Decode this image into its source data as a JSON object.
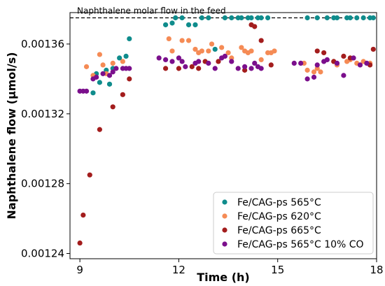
{
  "chart_data": {
    "type": "scatter",
    "xlabel": "Time (h)",
    "ylabel": "Naphthalene flow (μmol/s)",
    "xlim": [
      8.7,
      18.0
    ],
    "ylim": [
      0.001237,
      0.001378
    ],
    "xticks": [
      9,
      12,
      15,
      18
    ],
    "xtick_labels": [
      "9",
      "12",
      "15",
      "18"
    ],
    "yticks": [
      0.00124,
      0.00128,
      0.00132,
      0.00136
    ],
    "ytick_labels": [
      "0.00124",
      "0.00128",
      "0.00132",
      "0.00136"
    ],
    "reference_line": {
      "y": 0.001375,
      "label": "Naphthalene molar flow in the feed",
      "style": "dashed"
    },
    "legend_position": "lower-right",
    "grid": false,
    "series": [
      {
        "name": "Fe/CAG-ps 565°C",
        "color": "#0f8c8c",
        "x": [
          9.4,
          9.5,
          9.6,
          9.8,
          9.9,
          10.0,
          10.2,
          10.4,
          10.5,
          11.6,
          11.8,
          11.9,
          12.1,
          12.3,
          12.5,
          12.7,
          12.9,
          13.1,
          13.4,
          13.6,
          13.8,
          13.9,
          14.1,
          14.2,
          14.4,
          14.5,
          14.7,
          15.9,
          16.2,
          16.5,
          16.7,
          16.8,
          17.1,
          17.2,
          17.4,
          17.6,
          17.8,
          17.9
        ],
        "y": [
          0.001332,
          0.001343,
          0.001338,
          0.001345,
          0.001337,
          0.001346,
          0.001352,
          0.001353,
          0.001363,
          0.001371,
          0.001372,
          0.001375,
          0.001375,
          0.001371,
          0.001371,
          0.001375,
          0.001375,
          0.001357,
          0.001375,
          0.001375,
          0.001375,
          0.001375,
          0.001375,
          0.001375,
          0.001375,
          0.001375,
          0.001375,
          0.001375,
          0.001375,
          0.001375,
          0.001375,
          0.001375,
          0.001375,
          0.001375,
          0.001375,
          0.001375,
          0.001375,
          0.001375
        ]
      },
      {
        "name": "Fe/CAG-ps 620°C",
        "color": "#f58b55",
        "x": [
          9.2,
          9.4,
          9.6,
          9.7,
          9.8,
          10.0,
          10.3,
          11.7,
          11.8,
          12.1,
          12.3,
          12.5,
          12.6,
          12.7,
          12.9,
          13.0,
          13.3,
          13.5,
          13.6,
          13.9,
          14.0,
          14.1,
          14.2,
          14.5,
          14.7,
          14.8,
          14.9,
          15.8,
          15.9,
          16.1,
          16.2,
          16.3,
          16.7,
          16.8,
          17.1,
          17.2,
          17.4,
          17.6,
          17.8
        ],
        "y": [
          0.001347,
          0.001342,
          0.001354,
          0.001348,
          0.001343,
          0.001349,
          0.00135,
          0.001363,
          0.001356,
          0.001362,
          0.001362,
          0.001357,
          0.001355,
          0.001356,
          0.001356,
          0.00136,
          0.001358,
          0.001355,
          0.001352,
          0.001358,
          0.001356,
          0.001355,
          0.001356,
          0.001351,
          0.001355,
          0.001355,
          0.001356,
          0.001349,
          0.001345,
          0.001344,
          0.001346,
          0.001344,
          0.00135,
          0.001348,
          0.00135,
          0.001351,
          0.001349,
          0.00135,
          0.001349
        ]
      },
      {
        "name": "Fe/CAG-ps 665°C",
        "color": "#a31d1d",
        "x": [
          9.0,
          9.1,
          9.3,
          9.6,
          10.0,
          10.3,
          10.5,
          11.6,
          12.0,
          12.4,
          12.6,
          12.8,
          13.2,
          14.0,
          14.2,
          14.3,
          14.5,
          14.8,
          16.2,
          16.4,
          16.7,
          17.0,
          17.2,
          17.8,
          17.9
        ],
        "y": [
          0.001246,
          0.001262,
          0.001285,
          0.001311,
          0.001324,
          0.001331,
          0.00134,
          0.001346,
          0.001346,
          0.001347,
          0.001346,
          0.00135,
          0.00135,
          0.001345,
          0.001371,
          0.00137,
          0.001362,
          0.001348,
          0.001356,
          0.001355,
          0.00135,
          0.001353,
          0.001352,
          0.001348,
          0.001357
        ]
      },
      {
        "name": "Fe/CAG-ps 565°C 10% CO",
        "color": "#7b0f8c",
        "x": [
          9.0,
          9.1,
          9.2,
          9.4,
          9.5,
          9.7,
          9.9,
          10.0,
          10.1,
          10.3,
          10.4,
          10.5,
          11.4,
          11.6,
          11.8,
          12.0,
          12.1,
          12.2,
          12.5,
          12.6,
          12.9,
          13.1,
          13.3,
          13.4,
          13.6,
          13.8,
          14.0,
          14.2,
          14.3,
          14.4,
          14.5,
          15.5,
          15.7,
          15.9,
          16.1,
          16.2,
          16.4,
          16.5,
          16.8,
          17.0,
          17.3,
          17.5,
          17.7
        ],
        "y": [
          0.001333,
          0.001333,
          0.001333,
          0.00134,
          0.001341,
          0.001343,
          0.001342,
          0.001344,
          0.001346,
          0.001346,
          0.001346,
          0.001346,
          0.001352,
          0.001351,
          0.00135,
          0.001352,
          0.00135,
          0.001347,
          0.001349,
          0.00135,
          0.001349,
          0.001346,
          0.001352,
          0.001353,
          0.00135,
          0.001346,
          0.001347,
          0.001346,
          0.001349,
          0.001347,
          0.001346,
          0.001349,
          0.001349,
          0.00134,
          0.001341,
          0.001348,
          0.00135,
          0.001351,
          0.001349,
          0.001342,
          0.001352,
          0.001348,
          0.001349
        ]
      }
    ]
  }
}
